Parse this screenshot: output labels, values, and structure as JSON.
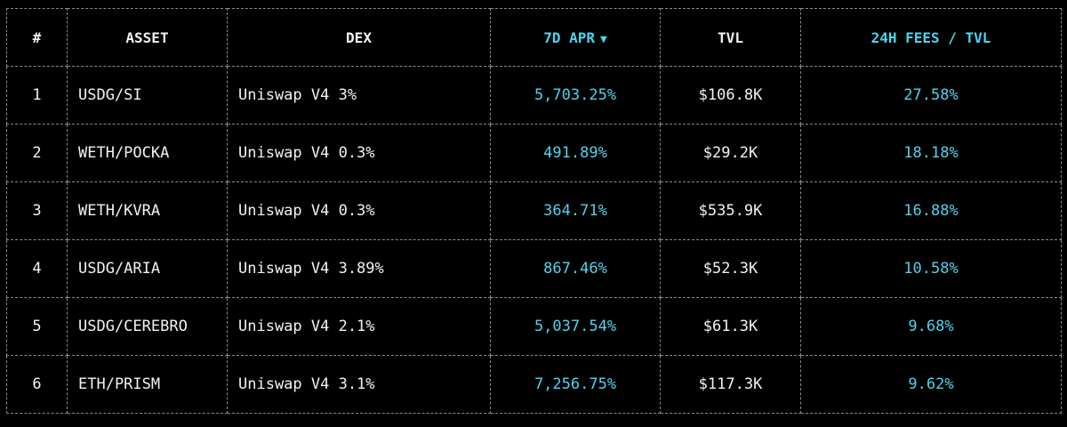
{
  "columns": {
    "rank": "#",
    "asset": "ASSET",
    "dex": "DEX",
    "apr": "7D APR",
    "sort_indicator": "▼",
    "tvl": "TVL",
    "fees": "24H FEES / TVL"
  },
  "colors": {
    "accent": "#4fd3ec",
    "text": "#f2f2f2",
    "grid": "#8a8a8a",
    "background": "#000000"
  },
  "rows": [
    {
      "rank": "1",
      "asset": "USDG/SI",
      "dex": "Uniswap V4 3%",
      "apr": "5,703.25%",
      "tvl": "$106.8K",
      "fees": "27.58%"
    },
    {
      "rank": "2",
      "asset": "WETH/POCKA",
      "dex": "Uniswap V4 0.3%",
      "apr": "491.89%",
      "tvl": "$29.2K",
      "fees": "18.18%"
    },
    {
      "rank": "3",
      "asset": "WETH/KVRA",
      "dex": "Uniswap V4 0.3%",
      "apr": "364.71%",
      "tvl": "$535.9K",
      "fees": "16.88%"
    },
    {
      "rank": "4",
      "asset": "USDG/ARIA",
      "dex": "Uniswap V4 3.89%",
      "apr": "867.46%",
      "tvl": "$52.3K",
      "fees": "10.58%"
    },
    {
      "rank": "5",
      "asset": "USDG/CEREBRO",
      "dex": "Uniswap V4 2.1%",
      "apr": "5,037.54%",
      "tvl": "$61.3K",
      "fees": "9.68%"
    },
    {
      "rank": "6",
      "asset": "ETH/PRISM",
      "dex": "Uniswap V4 3.1%",
      "apr": "7,256.75%",
      "tvl": "$117.3K",
      "fees": "9.62%"
    }
  ]
}
